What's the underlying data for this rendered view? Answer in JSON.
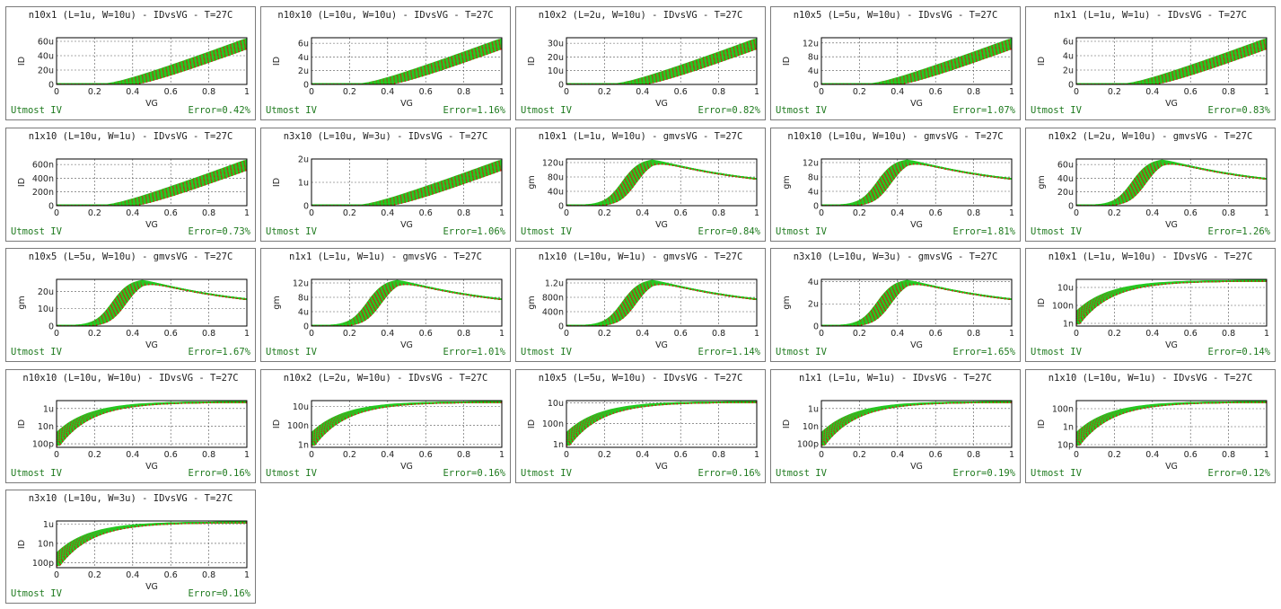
{
  "footer_left": "Utmost IV",
  "colors": {
    "measured": "#22cc22",
    "simulated": "#dd1111",
    "footer": "#1e7a1e"
  },
  "chart_data": [
    {
      "title": "n10x1 (L=1u, W=10u) - IDvsVG - T=27C",
      "type": "line",
      "shape": "id_lin",
      "xlabel": "VG",
      "ylabel": "ID",
      "xlim": [
        0,
        1
      ],
      "ylim": [
        0,
        6.5e-05
      ],
      "yticks": [
        {
          "v": 0,
          "l": "0"
        },
        {
          "v": 2e-05,
          "l": "20u"
        },
        {
          "v": 4e-05,
          "l": "40u"
        },
        {
          "v": 6e-05,
          "l": "60u"
        }
      ],
      "error": "Error=0.42%"
    },
    {
      "title": "n10x10 (L=10u, W=10u) - IDvsVG - T=27C",
      "type": "line",
      "shape": "id_lin",
      "xlabel": "VG",
      "ylabel": "ID",
      "xlim": [
        0,
        1
      ],
      "ylim": [
        0,
        6.8e-06
      ],
      "yticks": [
        {
          "v": 0,
          "l": "0"
        },
        {
          "v": 2e-06,
          "l": "2u"
        },
        {
          "v": 4e-06,
          "l": "4u"
        },
        {
          "v": 6e-06,
          "l": "6u"
        }
      ],
      "error": "Error=1.16%"
    },
    {
      "title": "n10x2 (L=2u, W=10u) - IDvsVG - T=27C",
      "type": "line",
      "shape": "id_lin",
      "xlabel": "VG",
      "ylabel": "ID",
      "xlim": [
        0,
        1
      ],
      "ylim": [
        0,
        3.4e-05
      ],
      "yticks": [
        {
          "v": 0,
          "l": "0"
        },
        {
          "v": 1e-05,
          "l": "10u"
        },
        {
          "v": 2e-05,
          "l": "20u"
        },
        {
          "v": 3e-05,
          "l": "30u"
        }
      ],
      "error": "Error=0.82%"
    },
    {
      "title": "n10x5 (L=5u, W=10u) - IDvsVG - T=27C",
      "type": "line",
      "shape": "id_lin",
      "xlabel": "VG",
      "ylabel": "ID",
      "xlim": [
        0,
        1
      ],
      "ylim": [
        0,
        1.35e-05
      ],
      "yticks": [
        {
          "v": 0,
          "l": "0"
        },
        {
          "v": 4e-06,
          "l": "4u"
        },
        {
          "v": 8e-06,
          "l": "8u"
        },
        {
          "v": 1.2e-05,
          "l": "12u"
        }
      ],
      "error": "Error=1.07%"
    },
    {
      "title": "n1x1 (L=1u, W=1u) - IDvsVG - T=27C",
      "type": "line",
      "shape": "id_lin",
      "xlabel": "VG",
      "ylabel": "ID",
      "xlim": [
        0,
        1
      ],
      "ylim": [
        0,
        6.5e-06
      ],
      "yticks": [
        {
          "v": 0,
          "l": "0"
        },
        {
          "v": 2e-06,
          "l": "2u"
        },
        {
          "v": 4e-06,
          "l": "4u"
        },
        {
          "v": 6e-06,
          "l": "6u"
        }
      ],
      "error": "Error=0.83%"
    },
    {
      "title": "n1x10 (L=10u, W=1u) - IDvsVG - T=27C",
      "type": "line",
      "shape": "id_lin",
      "xlabel": "VG",
      "ylabel": "ID",
      "xlim": [
        0,
        1
      ],
      "ylim": [
        0,
        6.8e-07
      ],
      "yticks": [
        {
          "v": 0,
          "l": "0"
        },
        {
          "v": 2e-07,
          "l": "200n"
        },
        {
          "v": 4e-07,
          "l": "400n"
        },
        {
          "v": 6e-07,
          "l": "600n"
        }
      ],
      "error": "Error=0.73%"
    },
    {
      "title": "n3x10 (L=10u, W=3u) - IDvsVG - T=27C",
      "type": "line",
      "shape": "id_lin",
      "xlabel": "VG",
      "ylabel": "ID",
      "xlim": [
        0,
        1
      ],
      "ylim": [
        0,
        2e-06
      ],
      "yticks": [
        {
          "v": 0,
          "l": "0"
        },
        {
          "v": 1e-06,
          "l": "1u"
        },
        {
          "v": 2e-06,
          "l": "2u"
        }
      ],
      "error": "Error=1.06%"
    },
    {
      "title": "n10x1 (L=1u, W=10u) - gmvsVG - T=27C",
      "type": "line",
      "shape": "gm",
      "xlabel": "VG",
      "ylabel": "gm",
      "xlim": [
        0,
        1
      ],
      "ylim": [
        0,
        0.00013
      ],
      "yticks": [
        {
          "v": 0,
          "l": "0"
        },
        {
          "v": 4e-05,
          "l": "40u"
        },
        {
          "v": 8e-05,
          "l": "80u"
        },
        {
          "v": 0.00012,
          "l": "120u"
        }
      ],
      "error": "Error=0.84%"
    },
    {
      "title": "n10x10 (L=10u, W=10u) - gmvsVG - T=27C",
      "type": "line",
      "shape": "gm",
      "xlabel": "VG",
      "ylabel": "gm",
      "xlim": [
        0,
        1
      ],
      "ylim": [
        0,
        1.3e-05
      ],
      "yticks": [
        {
          "v": 0,
          "l": "0"
        },
        {
          "v": 4e-06,
          "l": "4u"
        },
        {
          "v": 8e-06,
          "l": "8u"
        },
        {
          "v": 1.2e-05,
          "l": "12u"
        }
      ],
      "error": "Error=1.81%"
    },
    {
      "title": "n10x2 (L=2u, W=10u) - gmvsVG - T=27C",
      "type": "line",
      "shape": "gm",
      "xlabel": "VG",
      "ylabel": "gm",
      "xlim": [
        0,
        1
      ],
      "ylim": [
        0,
        6.8e-05
      ],
      "yticks": [
        {
          "v": 0,
          "l": "0"
        },
        {
          "v": 2e-05,
          "l": "20u"
        },
        {
          "v": 4e-05,
          "l": "40u"
        },
        {
          "v": 6e-05,
          "l": "60u"
        }
      ],
      "error": "Error=1.26%"
    },
    {
      "title": "n10x5 (L=5u, W=10u) - gmvsVG - T=27C",
      "type": "line",
      "shape": "gm",
      "xlabel": "VG",
      "ylabel": "gm",
      "xlim": [
        0,
        1
      ],
      "ylim": [
        0,
        2.7e-05
      ],
      "yticks": [
        {
          "v": 0,
          "l": "0"
        },
        {
          "v": 1e-05,
          "l": "10u"
        },
        {
          "v": 2e-05,
          "l": "20u"
        }
      ],
      "error": "Error=1.67%"
    },
    {
      "title": "n1x1 (L=1u, W=1u) - gmvsVG - T=27C",
      "type": "line",
      "shape": "gm",
      "xlabel": "VG",
      "ylabel": "gm",
      "xlim": [
        0,
        1
      ],
      "ylim": [
        0,
        1.3e-05
      ],
      "yticks": [
        {
          "v": 0,
          "l": "0"
        },
        {
          "v": 4e-06,
          "l": "4u"
        },
        {
          "v": 8e-06,
          "l": "8u"
        },
        {
          "v": 1.2e-05,
          "l": "12u"
        }
      ],
      "error": "Error=1.01%"
    },
    {
      "title": "n1x10 (L=10u, W=1u) - gmvsVG - T=27C",
      "type": "line",
      "shape": "gm",
      "xlabel": "VG",
      "ylabel": "gm",
      "xlim": [
        0,
        1
      ],
      "ylim": [
        0,
        1.3e-06
      ],
      "yticks": [
        {
          "v": 0,
          "l": "0"
        },
        {
          "v": 4e-07,
          "l": "400n"
        },
        {
          "v": 8e-07,
          "l": "800n"
        },
        {
          "v": 1.2e-06,
          "l": "1.2u"
        }
      ],
      "error": "Error=1.14%"
    },
    {
      "title": "n3x10 (L=10u, W=3u) - gmvsVG - T=27C",
      "type": "line",
      "shape": "gm",
      "xlabel": "VG",
      "ylabel": "gm",
      "xlim": [
        0,
        1
      ],
      "ylim": [
        0,
        4.2e-06
      ],
      "yticks": [
        {
          "v": 0,
          "l": "0"
        },
        {
          "v": 2e-06,
          "l": "2u"
        },
        {
          "v": 4e-06,
          "l": "4u"
        }
      ],
      "error": "Error=1.65%"
    },
    {
      "title": "n10x1 (L=1u, W=10u) - IDvsVG - T=27C",
      "type": "line",
      "shape": "id_log",
      "xlabel": "VG",
      "ylabel": "ID",
      "xlim": [
        0,
        1
      ],
      "ylog": true,
      "ylim": [
        -9.3,
        -4.1
      ],
      "yticks": [
        {
          "v": -9,
          "l": "1n"
        },
        {
          "v": -7,
          "l": "100n"
        },
        {
          "v": -5,
          "l": "10u"
        }
      ],
      "error": "Error=0.14%"
    },
    {
      "title": "n10x10 (L=10u, W=10u) - IDvsVG - T=27C",
      "type": "line",
      "shape": "id_log",
      "xlabel": "VG",
      "ylabel": "ID",
      "xlim": [
        0,
        1
      ],
      "ylog": true,
      "ylim": [
        -10.4,
        -5.1
      ],
      "yticks": [
        {
          "v": -10,
          "l": "100p"
        },
        {
          "v": -8,
          "l": "10n"
        },
        {
          "v": -6,
          "l": "1u"
        }
      ],
      "error": "Error=0.16%"
    },
    {
      "title": "n10x2 (L=2u, W=10u) - IDvsVG - T=27C",
      "type": "line",
      "shape": "id_log",
      "xlabel": "VG",
      "ylabel": "ID",
      "xlim": [
        0,
        1
      ],
      "ylog": true,
      "ylim": [
        -9.3,
        -4.4
      ],
      "yticks": [
        {
          "v": -9,
          "l": "1n"
        },
        {
          "v": -7,
          "l": "100n"
        },
        {
          "v": -5,
          "l": "10u"
        }
      ],
      "error": "Error=0.16%"
    },
    {
      "title": "n10x5 (L=5u, W=10u) - IDvsVG - T=27C",
      "type": "line",
      "shape": "id_log",
      "xlabel": "VG",
      "ylabel": "ID",
      "xlim": [
        0,
        1
      ],
      "ylog": true,
      "ylim": [
        -9.3,
        -4.8
      ],
      "yticks": [
        {
          "v": -9,
          "l": "1n"
        },
        {
          "v": -7,
          "l": "100n"
        },
        {
          "v": -5,
          "l": "10u"
        }
      ],
      "error": "Error=0.16%"
    },
    {
      "title": "n1x1 (L=1u, W=1u) - IDvsVG - T=27C",
      "type": "line",
      "shape": "id_log",
      "xlabel": "VG",
      "ylabel": "ID",
      "xlim": [
        0,
        1
      ],
      "ylog": true,
      "ylim": [
        -10.4,
        -5.1
      ],
      "yticks": [
        {
          "v": -10,
          "l": "100p"
        },
        {
          "v": -8,
          "l": "10n"
        },
        {
          "v": -6,
          "l": "1u"
        }
      ],
      "error": "Error=0.19%"
    },
    {
      "title": "n1x10 (L=10u, W=1u) - IDvsVG - T=27C",
      "type": "line",
      "shape": "id_log",
      "xlabel": "VG",
      "ylabel": "ID",
      "xlim": [
        0,
        1
      ],
      "ylog": true,
      "ylim": [
        -11.3,
        -6.1
      ],
      "yticks": [
        {
          "v": -11,
          "l": "10p"
        },
        {
          "v": -9,
          "l": "1n"
        },
        {
          "v": -7,
          "l": "100n"
        }
      ],
      "error": "Error=0.12%"
    },
    {
      "title": "n3x10 (L=10u, W=3u) - IDvsVG - T=27C",
      "type": "line",
      "shape": "id_log",
      "xlabel": "VG",
      "ylabel": "ID",
      "xlim": [
        0,
        1
      ],
      "ylog": true,
      "ylim": [
        -10.5,
        -5.7
      ],
      "yticks": [
        {
          "v": -10,
          "l": "100p"
        },
        {
          "v": -8,
          "l": "10n"
        },
        {
          "v": -6,
          "l": "1u"
        }
      ],
      "error": "Error=0.16%"
    }
  ]
}
